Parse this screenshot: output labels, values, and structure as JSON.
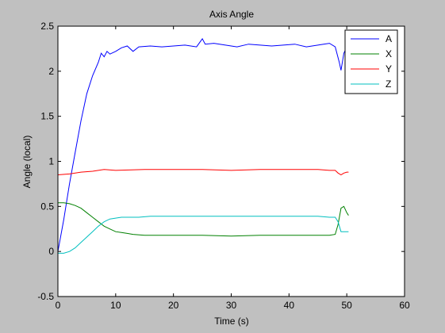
{
  "chart_data": {
    "type": "line",
    "title": "Axis Angle",
    "xlabel": "Time (s)",
    "ylabel": "Angle (local)",
    "xlim": [
      0,
      60
    ],
    "ylim": [
      -0.5,
      2.5
    ],
    "xticks": [
      0,
      10,
      20,
      30,
      40,
      50,
      60
    ],
    "yticks": [
      -0.5,
      0,
      0.5,
      1,
      1.5,
      2,
      2.5
    ],
    "grid": false,
    "legend_position": "top-right",
    "colors": {
      "figure_bg": "#c0c0c0",
      "axes_bg": "#ffffff",
      "axes_line": "#000000"
    },
    "series": [
      {
        "name": "A",
        "color": "#0000ff",
        "x": [
          0,
          1,
          2,
          3,
          4,
          5,
          6,
          7,
          7.5,
          8,
          8.5,
          9,
          10,
          11,
          12,
          13,
          14,
          16,
          18,
          20,
          22,
          24,
          25,
          25.5,
          27,
          29,
          31,
          33,
          35,
          37,
          39,
          41,
          43,
          45,
          46,
          47,
          48,
          48.7,
          49,
          49.5,
          50,
          50.3
        ],
        "y": [
          0.0,
          0.35,
          0.75,
          1.1,
          1.45,
          1.75,
          1.95,
          2.1,
          2.2,
          2.16,
          2.22,
          2.19,
          2.22,
          2.26,
          2.28,
          2.22,
          2.27,
          2.28,
          2.27,
          2.28,
          2.29,
          2.27,
          2.36,
          2.3,
          2.31,
          2.29,
          2.27,
          2.3,
          2.29,
          2.28,
          2.29,
          2.3,
          2.27,
          2.29,
          2.3,
          2.31,
          2.27,
          2.1,
          2.01,
          2.2,
          2.27,
          2.25
        ]
      },
      {
        "name": "X",
        "color": "#008000",
        "x": [
          0,
          1,
          2,
          3,
          4,
          5,
          6,
          7,
          8,
          9,
          10,
          11,
          12,
          13,
          15,
          18,
          20,
          25,
          30,
          35,
          40,
          45,
          47,
          48,
          48.5,
          49,
          49.5,
          50,
          50.3
        ],
        "y": [
          0.54,
          0.54,
          0.53,
          0.51,
          0.48,
          0.43,
          0.38,
          0.33,
          0.28,
          0.25,
          0.22,
          0.21,
          0.2,
          0.19,
          0.18,
          0.18,
          0.18,
          0.18,
          0.17,
          0.18,
          0.18,
          0.18,
          0.18,
          0.19,
          0.3,
          0.48,
          0.5,
          0.43,
          0.4
        ]
      },
      {
        "name": "Y",
        "color": "#ff0000",
        "x": [
          0,
          2,
          4,
          6,
          8,
          10,
          15,
          20,
          25,
          30,
          35,
          40,
          45,
          47,
          48,
          48.5,
          49,
          49.5,
          50,
          50.3
        ],
        "y": [
          0.85,
          0.86,
          0.88,
          0.89,
          0.91,
          0.9,
          0.91,
          0.91,
          0.91,
          0.9,
          0.91,
          0.91,
          0.91,
          0.9,
          0.9,
          0.87,
          0.85,
          0.87,
          0.88,
          0.88
        ]
      },
      {
        "name": "Z",
        "color": "#00bfbf",
        "x": [
          0,
          1,
          2,
          3,
          4,
          5,
          6,
          7,
          8,
          9,
          10,
          11,
          12,
          14,
          16,
          20,
          25,
          30,
          35,
          40,
          45,
          47,
          48,
          48.5,
          49,
          49.5,
          50,
          50.3
        ],
        "y": [
          -0.02,
          -0.02,
          0.0,
          0.04,
          0.1,
          0.16,
          0.22,
          0.28,
          0.33,
          0.36,
          0.37,
          0.38,
          0.38,
          0.38,
          0.39,
          0.39,
          0.39,
          0.39,
          0.39,
          0.39,
          0.39,
          0.38,
          0.38,
          0.33,
          0.22,
          0.22,
          0.22,
          0.22
        ]
      }
    ]
  }
}
